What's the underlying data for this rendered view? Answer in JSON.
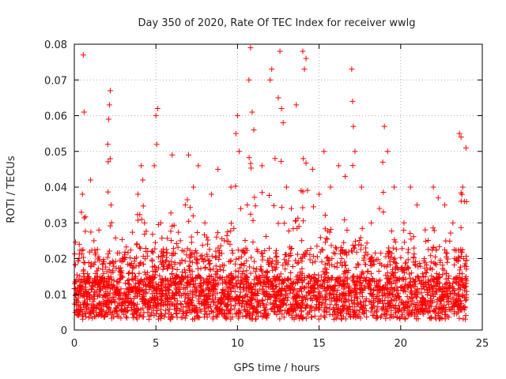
{
  "chart_data": {
    "type": "scatter",
    "title": "Day 350 of 2020, Rate Of TEC Index for receiver wwlg",
    "xlabel": "GPS time / hours",
    "ylabel": "ROTI / TECUs",
    "xlim": [
      0,
      25
    ],
    "ylim": [
      0,
      0.08
    ],
    "xticks": [
      "0",
      "5",
      "10",
      "15",
      "20",
      "25"
    ],
    "yticks": [
      "0",
      "0.01",
      "0.02",
      "0.03",
      "0.04",
      "0.05",
      "0.06",
      "0.07",
      "0.08"
    ],
    "grid": true,
    "marker": "+",
    "color": "#ff0000",
    "series": [
      {
        "name": "ROTI",
        "x": [
          0.1,
          0.3,
          0.5,
          0.55,
          0.6,
          1.0,
          1.2,
          2.05,
          2.1,
          2.15,
          2.2,
          2.25,
          3.5,
          3.7,
          3.9,
          4.1,
          4.2,
          4.3,
          4.5,
          4.9,
          5.0,
          5.05,
          5.1,
          5.3,
          5.8,
          6.0,
          6.5,
          6.8,
          7.0,
          7.3,
          7.6,
          8.0,
          8.4,
          8.8,
          9.2,
          9.6,
          9.9,
          10.0,
          10.1,
          10.2,
          10.6,
          10.7,
          10.8,
          10.9,
          11.0,
          11.5,
          12.0,
          12.1,
          12.3,
          12.5,
          12.6,
          12.7,
          12.8,
          13.0,
          13.3,
          13.6,
          13.9,
          14.0,
          14.1,
          14.2,
          14.6,
          15.0,
          15.3,
          15.7,
          16.2,
          16.6,
          17.0,
          17.05,
          17.1,
          17.2,
          17.6,
          18.2,
          18.7,
          18.9,
          19.0,
          19.2,
          19.6,
          20.2,
          20.6,
          21.0,
          21.5,
          22.0,
          22.3,
          22.7,
          23.2,
          23.6,
          23.7,
          23.8,
          23.9,
          24.0
        ],
        "y": [
          0.01,
          0.024,
          0.038,
          0.077,
          0.061,
          0.042,
          0.025,
          0.052,
          0.059,
          0.063,
          0.067,
          0.035,
          0.012,
          0.02,
          0.038,
          0.046,
          0.042,
          0.03,
          0.022,
          0.046,
          0.06,
          0.052,
          0.062,
          0.03,
          0.018,
          0.049,
          0.025,
          0.035,
          0.049,
          0.04,
          0.046,
          0.03,
          0.038,
          0.045,
          0.025,
          0.04,
          0.055,
          0.06,
          0.05,
          0.034,
          0.035,
          0.07,
          0.079,
          0.061,
          0.056,
          0.046,
          0.07,
          0.073,
          0.048,
          0.065,
          0.078,
          0.062,
          0.058,
          0.04,
          0.034,
          0.063,
          0.039,
          0.078,
          0.073,
          0.076,
          0.045,
          0.038,
          0.05,
          0.04,
          0.046,
          0.043,
          0.073,
          0.064,
          0.057,
          0.05,
          0.04,
          0.03,
          0.034,
          0.047,
          0.057,
          0.05,
          0.04,
          0.03,
          0.04,
          0.035,
          0.028,
          0.04,
          0.037,
          0.035,
          0.03,
          0.055,
          0.054,
          0.04,
          0.036,
          0.051
        ]
      }
    ]
  }
}
